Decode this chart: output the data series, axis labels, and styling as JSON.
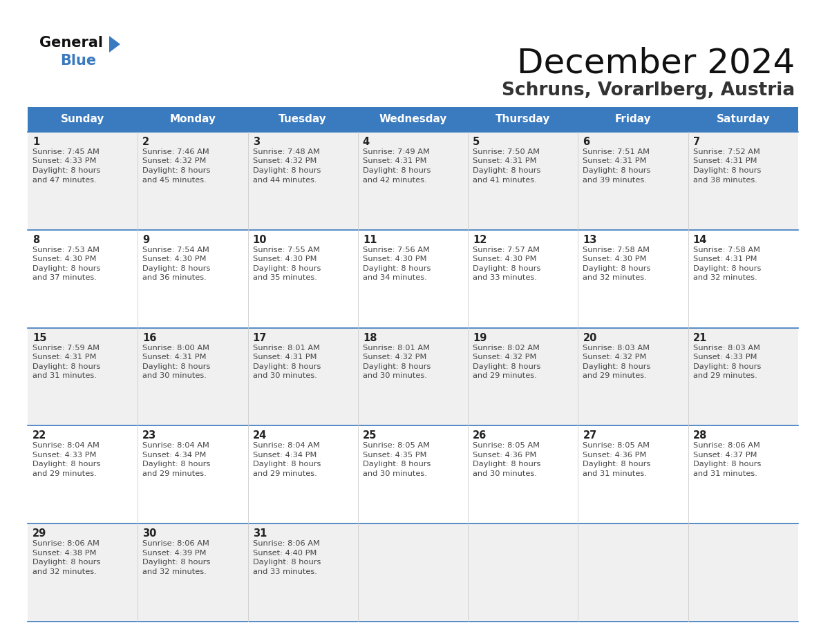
{
  "title": "December 2024",
  "subtitle": "Schruns, Vorarlberg, Austria",
  "days_of_week": [
    "Sunday",
    "Monday",
    "Tuesday",
    "Wednesday",
    "Thursday",
    "Friday",
    "Saturday"
  ],
  "header_bg": "#3a7abf",
  "header_text": "#ffffff",
  "row_bg_even": "#f0f0f0",
  "row_bg_odd": "#ffffff",
  "border_color": "#3a7abf",
  "day_num_color": "#222222",
  "cell_text_color": "#444444",
  "calendar_data": [
    {
      "day": 1,
      "col": 0,
      "row": 0,
      "sunrise": "7:45 AM",
      "sunset": "4:33 PM",
      "daylight_hrs": 8,
      "daylight_min": 47
    },
    {
      "day": 2,
      "col": 1,
      "row": 0,
      "sunrise": "7:46 AM",
      "sunset": "4:32 PM",
      "daylight_hrs": 8,
      "daylight_min": 45
    },
    {
      "day": 3,
      "col": 2,
      "row": 0,
      "sunrise": "7:48 AM",
      "sunset": "4:32 PM",
      "daylight_hrs": 8,
      "daylight_min": 44
    },
    {
      "day": 4,
      "col": 3,
      "row": 0,
      "sunrise": "7:49 AM",
      "sunset": "4:31 PM",
      "daylight_hrs": 8,
      "daylight_min": 42
    },
    {
      "day": 5,
      "col": 4,
      "row": 0,
      "sunrise": "7:50 AM",
      "sunset": "4:31 PM",
      "daylight_hrs": 8,
      "daylight_min": 41
    },
    {
      "day": 6,
      "col": 5,
      "row": 0,
      "sunrise": "7:51 AM",
      "sunset": "4:31 PM",
      "daylight_hrs": 8,
      "daylight_min": 39
    },
    {
      "day": 7,
      "col": 6,
      "row": 0,
      "sunrise": "7:52 AM",
      "sunset": "4:31 PM",
      "daylight_hrs": 8,
      "daylight_min": 38
    },
    {
      "day": 8,
      "col": 0,
      "row": 1,
      "sunrise": "7:53 AM",
      "sunset": "4:30 PM",
      "daylight_hrs": 8,
      "daylight_min": 37
    },
    {
      "day": 9,
      "col": 1,
      "row": 1,
      "sunrise": "7:54 AM",
      "sunset": "4:30 PM",
      "daylight_hrs": 8,
      "daylight_min": 36
    },
    {
      "day": 10,
      "col": 2,
      "row": 1,
      "sunrise": "7:55 AM",
      "sunset": "4:30 PM",
      "daylight_hrs": 8,
      "daylight_min": 35
    },
    {
      "day": 11,
      "col": 3,
      "row": 1,
      "sunrise": "7:56 AM",
      "sunset": "4:30 PM",
      "daylight_hrs": 8,
      "daylight_min": 34
    },
    {
      "day": 12,
      "col": 4,
      "row": 1,
      "sunrise": "7:57 AM",
      "sunset": "4:30 PM",
      "daylight_hrs": 8,
      "daylight_min": 33
    },
    {
      "day": 13,
      "col": 5,
      "row": 1,
      "sunrise": "7:58 AM",
      "sunset": "4:30 PM",
      "daylight_hrs": 8,
      "daylight_min": 32
    },
    {
      "day": 14,
      "col": 6,
      "row": 1,
      "sunrise": "7:58 AM",
      "sunset": "4:31 PM",
      "daylight_hrs": 8,
      "daylight_min": 32
    },
    {
      "day": 15,
      "col": 0,
      "row": 2,
      "sunrise": "7:59 AM",
      "sunset": "4:31 PM",
      "daylight_hrs": 8,
      "daylight_min": 31
    },
    {
      "day": 16,
      "col": 1,
      "row": 2,
      "sunrise": "8:00 AM",
      "sunset": "4:31 PM",
      "daylight_hrs": 8,
      "daylight_min": 30
    },
    {
      "day": 17,
      "col": 2,
      "row": 2,
      "sunrise": "8:01 AM",
      "sunset": "4:31 PM",
      "daylight_hrs": 8,
      "daylight_min": 30
    },
    {
      "day": 18,
      "col": 3,
      "row": 2,
      "sunrise": "8:01 AM",
      "sunset": "4:32 PM",
      "daylight_hrs": 8,
      "daylight_min": 30
    },
    {
      "day": 19,
      "col": 4,
      "row": 2,
      "sunrise": "8:02 AM",
      "sunset": "4:32 PM",
      "daylight_hrs": 8,
      "daylight_min": 29
    },
    {
      "day": 20,
      "col": 5,
      "row": 2,
      "sunrise": "8:03 AM",
      "sunset": "4:32 PM",
      "daylight_hrs": 8,
      "daylight_min": 29
    },
    {
      "day": 21,
      "col": 6,
      "row": 2,
      "sunrise": "8:03 AM",
      "sunset": "4:33 PM",
      "daylight_hrs": 8,
      "daylight_min": 29
    },
    {
      "day": 22,
      "col": 0,
      "row": 3,
      "sunrise": "8:04 AM",
      "sunset": "4:33 PM",
      "daylight_hrs": 8,
      "daylight_min": 29
    },
    {
      "day": 23,
      "col": 1,
      "row": 3,
      "sunrise": "8:04 AM",
      "sunset": "4:34 PM",
      "daylight_hrs": 8,
      "daylight_min": 29
    },
    {
      "day": 24,
      "col": 2,
      "row": 3,
      "sunrise": "8:04 AM",
      "sunset": "4:34 PM",
      "daylight_hrs": 8,
      "daylight_min": 29
    },
    {
      "day": 25,
      "col": 3,
      "row": 3,
      "sunrise": "8:05 AM",
      "sunset": "4:35 PM",
      "daylight_hrs": 8,
      "daylight_min": 30
    },
    {
      "day": 26,
      "col": 4,
      "row": 3,
      "sunrise": "8:05 AM",
      "sunset": "4:36 PM",
      "daylight_hrs": 8,
      "daylight_min": 30
    },
    {
      "day": 27,
      "col": 5,
      "row": 3,
      "sunrise": "8:05 AM",
      "sunset": "4:36 PM",
      "daylight_hrs": 8,
      "daylight_min": 31
    },
    {
      "day": 28,
      "col": 6,
      "row": 3,
      "sunrise": "8:06 AM",
      "sunset": "4:37 PM",
      "daylight_hrs": 8,
      "daylight_min": 31
    },
    {
      "day": 29,
      "col": 0,
      "row": 4,
      "sunrise": "8:06 AM",
      "sunset": "4:38 PM",
      "daylight_hrs": 8,
      "daylight_min": 32
    },
    {
      "day": 30,
      "col": 1,
      "row": 4,
      "sunrise": "8:06 AM",
      "sunset": "4:39 PM",
      "daylight_hrs": 8,
      "daylight_min": 32
    },
    {
      "day": 31,
      "col": 2,
      "row": 4,
      "sunrise": "8:06 AM",
      "sunset": "4:40 PM",
      "daylight_hrs": 8,
      "daylight_min": 33
    }
  ],
  "num_rows": 5,
  "num_cols": 7,
  "logo_text1": "General",
  "logo_text2": "Blue",
  "logo_arrow_color": "#3a7abf"
}
